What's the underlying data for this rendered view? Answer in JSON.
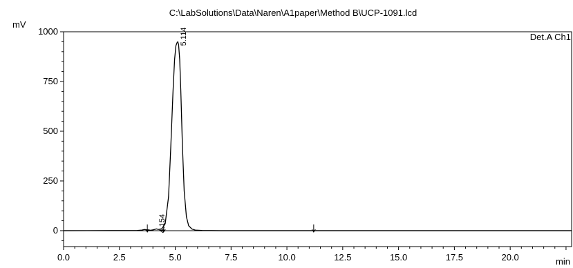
{
  "chart_data": {
    "type": "line",
    "title": "C:\\LabSolutions\\Data\\Naren\\A1paper\\Method B\\UCP-1091.lcd",
    "detector_label": "Det.A Ch1",
    "ylabel": "mV",
    "xlabel": "min",
    "xlim": [
      0,
      22.75
    ],
    "ylim": [
      -80,
      1000
    ],
    "x_ticks": [
      0.0,
      2.5,
      5.0,
      7.5,
      10.0,
      12.5,
      15.0,
      17.5,
      20.0
    ],
    "x_tick_labels": [
      "0.0",
      "2.5",
      "5.0",
      "7.5",
      "10.0",
      "12.5",
      "15.0",
      "17.5",
      "20.0"
    ],
    "y_ticks": [
      0,
      250,
      500,
      750,
      1000
    ],
    "y_tick_labels": [
      "0",
      "250",
      "500",
      "750",
      "1000"
    ],
    "grid": false,
    "series": [
      {
        "x": [
          0.0,
          3.3,
          3.5,
          3.62,
          3.75,
          3.9,
          4.0,
          4.1,
          4.154,
          4.25,
          4.4,
          4.55,
          4.7,
          4.8,
          4.9,
          4.97,
          5.03,
          5.08,
          5.114,
          5.15,
          5.2,
          5.25,
          5.32,
          5.4,
          5.5,
          5.6,
          5.75,
          5.9,
          6.2,
          7.0,
          11.2,
          22.75
        ],
        "y": [
          0,
          1,
          3,
          6,
          4,
          2,
          4,
          7,
          9,
          6,
          10,
          35,
          170,
          420,
          700,
          860,
          930,
          945,
          950,
          935,
          860,
          700,
          430,
          200,
          70,
          25,
          8,
          3,
          1,
          0,
          0,
          0
        ],
        "color": "#000000"
      }
    ],
    "peaks": [
      {
        "label": "4.154",
        "rt": 4.154,
        "height": 9
      },
      {
        "label": "5.114",
        "rt": 5.114,
        "height": 950
      }
    ],
    "event_markers": [
      3.75,
      4.48,
      11.2
    ]
  }
}
